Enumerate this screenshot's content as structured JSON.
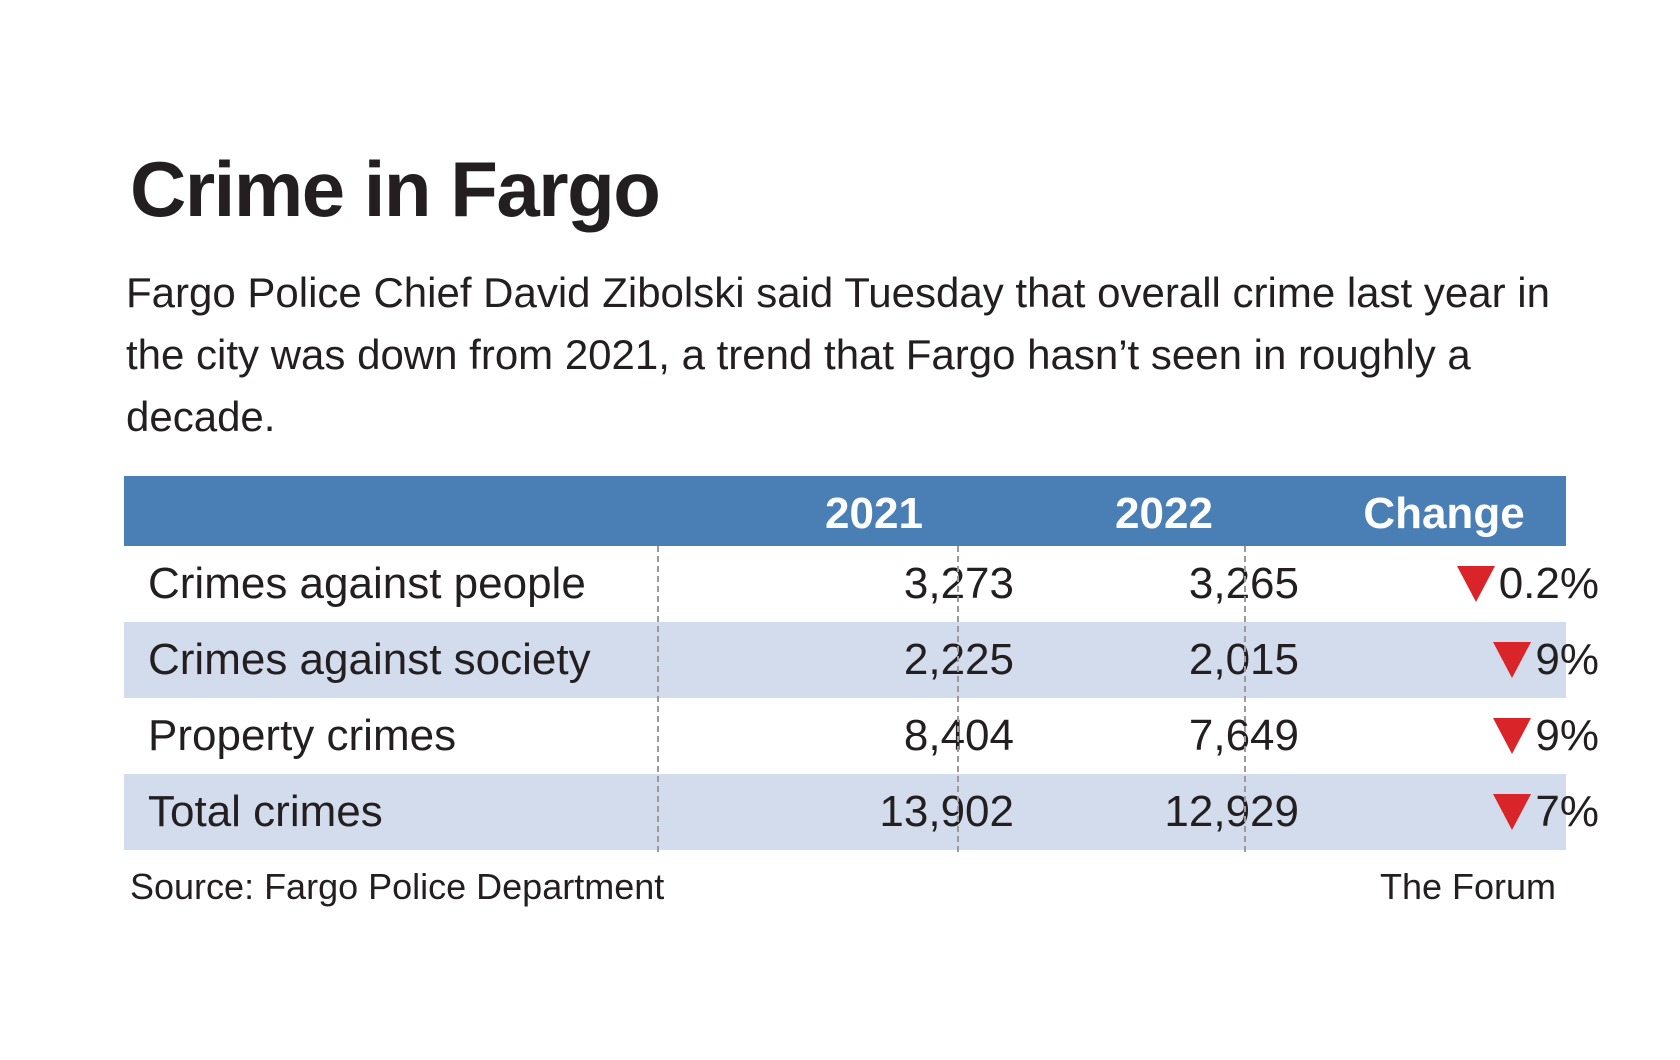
{
  "chart_data": {
    "type": "table",
    "title": "Crime in Fargo",
    "subtitle": "Fargo Police Chief David Zibolski said Tuesday that overall crime last year in the city was down from 2021, a trend that Fargo hasn’t seen in roughly a decade.",
    "columns": [
      "",
      "2021",
      "2022",
      "Change"
    ],
    "rows": [
      {
        "label": "Crimes against people",
        "v2021": "3,273",
        "v2022": "3,265",
        "change": "0.2%",
        "direction": "down"
      },
      {
        "label": "Crimes against society",
        "v2021": "2,225",
        "v2022": "2,015",
        "change": "9%",
        "direction": "down"
      },
      {
        "label": "Property crimes",
        "v2021": "8,404",
        "v2022": "7,649",
        "change": "9%",
        "direction": "down"
      },
      {
        "label": "Total crimes",
        "v2021": "13,902",
        "v2022": "12,929",
        "change": "7%",
        "direction": "down"
      }
    ],
    "source": "Source: Fargo Police Department",
    "credit": "The Forum"
  },
  "colors": {
    "header": "#4a7fb5",
    "shaded_row": "#d3dcec",
    "down_arrow": "#d9252a",
    "text": "#231f20"
  }
}
